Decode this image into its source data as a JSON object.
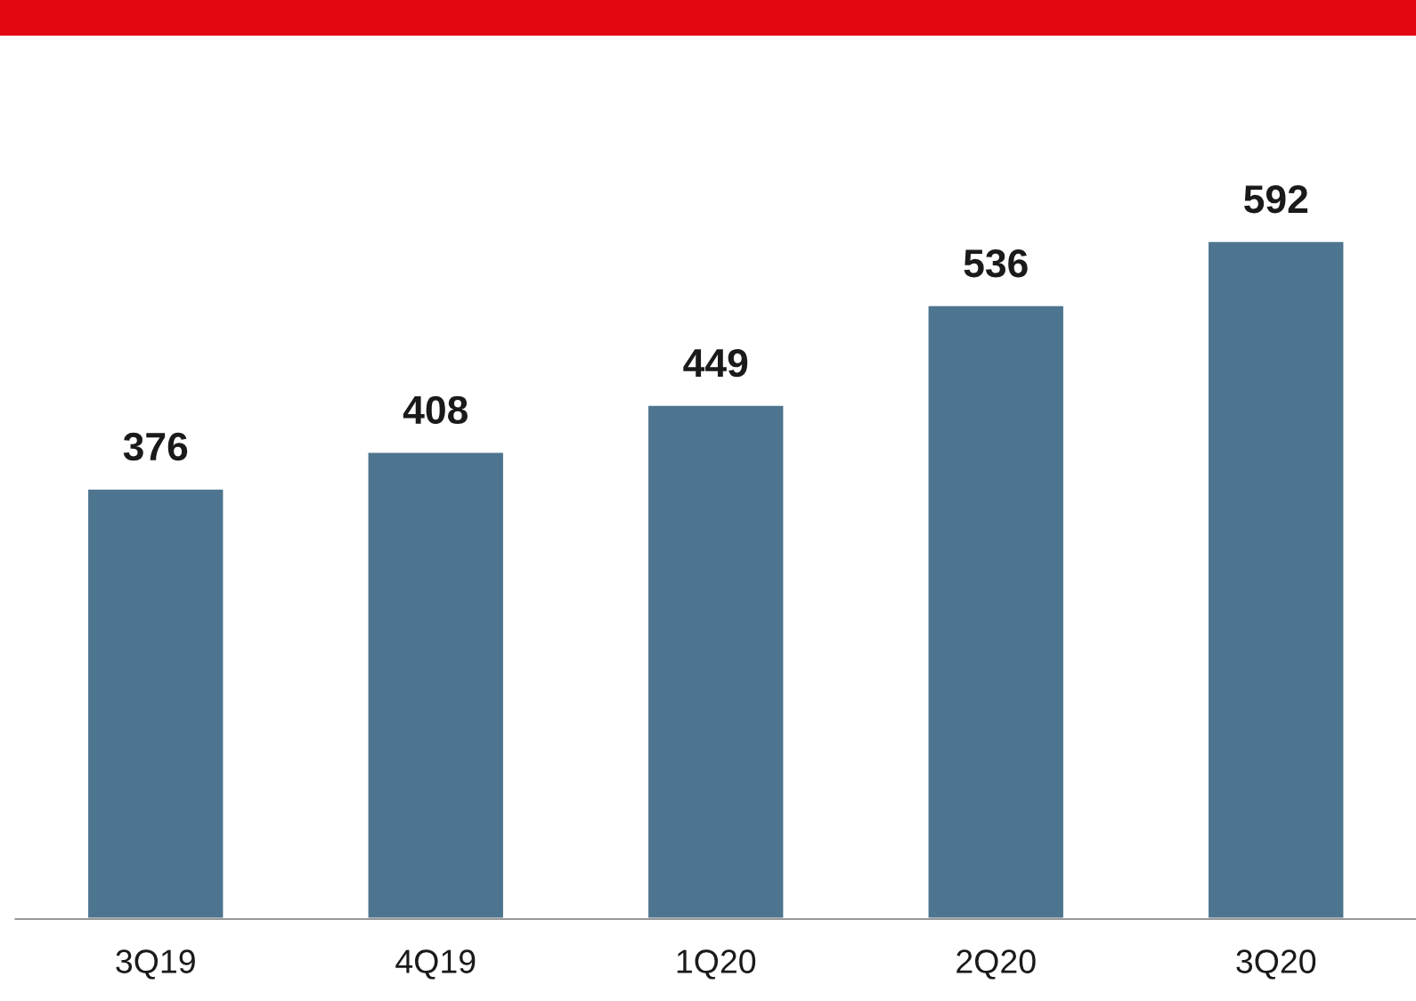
{
  "chart_data": {
    "type": "bar",
    "categories": [
      "3Q19",
      "4Q19",
      "1Q20",
      "2Q20",
      "3Q20"
    ],
    "values": [
      376,
      408,
      449,
      536,
      592
    ],
    "color": "#4e758f",
    "data_labels": true,
    "grid": false,
    "legend": false
  }
}
